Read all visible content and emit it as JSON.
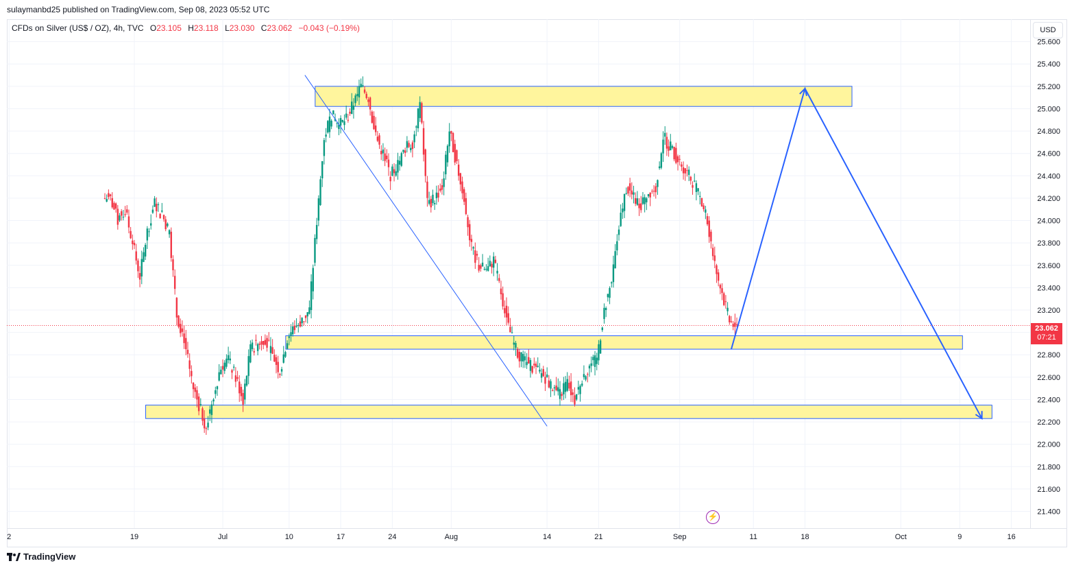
{
  "header": {
    "published_line": "sulaymanbd25 published on TradingView.com, Sep 08, 2023 05:52 UTC"
  },
  "legend": {
    "symbol": "CFDs on Silver (US$ / OZ), 4h, TVC",
    "open_label": "O",
    "open": "23.105",
    "high_label": "H",
    "high": "23.118",
    "low_label": "L",
    "low": "23.030",
    "close_label": "C",
    "close": "23.062",
    "change": "−0.043 (−0.19%)"
  },
  "currency_button": "USD",
  "last_price": {
    "value": "23.062",
    "countdown": "07:21"
  },
  "brand": {
    "name": "TradingView"
  },
  "colors": {
    "up": "#089981",
    "down": "#f23645",
    "zone_fill": "#fff59d",
    "zone_stroke": "#2962ff",
    "drawing": "#2962ff",
    "last_line": "#f23645",
    "alert_icon": "#9c27b0"
  },
  "icons": {
    "alert": "lightning-icon",
    "brand_logo": "tradingview-logo-icon"
  },
  "chart_data": {
    "type": "candlestick",
    "timeframe": "4h",
    "ylim": [
      21.25,
      25.8
    ],
    "y_ticks": [
      "25.600",
      "25.400",
      "25.200",
      "25.000",
      "24.800",
      "24.600",
      "24.400",
      "24.200",
      "24.000",
      "23.800",
      "23.600",
      "23.400",
      "23.200",
      "23.000",
      "22.800",
      "22.600",
      "22.400",
      "22.200",
      "22.000",
      "21.800",
      "21.600",
      "21.400"
    ],
    "x_ticks": [
      "2",
      "19",
      "Jul",
      "10",
      "17",
      "24",
      "Aug",
      "14",
      "21",
      "Sep",
      "11",
      "18",
      "Oct",
      "9",
      "16"
    ],
    "series_close_path": [
      [
        "Jun 15",
        24.2
      ],
      [
        "Jun 16",
        24.0
      ],
      [
        "Jun 17",
        24.1
      ],
      [
        "Jun 18",
        23.8
      ],
      [
        "Jun 19",
        23.5
      ],
      [
        "Jun 20",
        23.9
      ],
      [
        "Jun 21",
        24.15
      ],
      [
        "Jun 22",
        24.05
      ],
      [
        "Jun 23",
        23.9
      ],
      [
        "Jun 24",
        23.15
      ],
      [
        "Jun 25",
        22.95
      ],
      [
        "Jun 26",
        22.55
      ],
      [
        "Jun 27",
        22.35
      ],
      [
        "Jun 28",
        22.15
      ],
      [
        "Jun 29",
        22.45
      ],
      [
        "Jun 30",
        22.7
      ],
      [
        "Jul 1",
        22.75
      ],
      [
        "Jul 2",
        22.6
      ],
      [
        "Jul 3",
        22.4
      ],
      [
        "Jul 4",
        22.85
      ],
      [
        "Jul 5",
        22.9
      ],
      [
        "Jul 6",
        22.95
      ],
      [
        "Jul 7",
        22.8
      ],
      [
        "Jul 8",
        22.65
      ],
      [
        "Jul 9",
        22.95
      ],
      [
        "Jul 10",
        23.05
      ],
      [
        "Jul 11",
        23.1
      ],
      [
        "Jul 12",
        23.2
      ],
      [
        "Jul 13",
        24.0
      ],
      [
        "Jul 14",
        24.75
      ],
      [
        "Jul 15",
        24.95
      ],
      [
        "Jul 16",
        24.85
      ],
      [
        "Jul 17",
        24.9
      ],
      [
        "Jul 18",
        25.05
      ],
      [
        "Jul 19",
        25.2
      ],
      [
        "Jul 20",
        25.1
      ],
      [
        "Jul 21",
        24.75
      ],
      [
        "Jul 22",
        24.6
      ],
      [
        "Jul 23",
        24.4
      ],
      [
        "Jul 24",
        24.5
      ],
      [
        "Jul 25",
        24.65
      ],
      [
        "Jul 26",
        24.7
      ],
      [
        "Jul 27",
        25.05
      ],
      [
        "Jul 28",
        24.15
      ],
      [
        "Jul 29",
        24.2
      ],
      [
        "Jul 30",
        24.3
      ],
      [
        "Jul 31",
        24.8
      ],
      [
        "Aug 1",
        24.5
      ],
      [
        "Aug 2",
        24.2
      ],
      [
        "Aug 3",
        23.75
      ],
      [
        "Aug 4",
        23.6
      ],
      [
        "Aug 5",
        23.55
      ],
      [
        "Aug 6",
        23.65
      ],
      [
        "Aug 7",
        23.35
      ],
      [
        "Aug 8",
        23.05
      ],
      [
        "Aug 9",
        22.85
      ],
      [
        "Aug 10",
        22.75
      ],
      [
        "Aug 11",
        22.7
      ],
      [
        "Aug 12",
        22.65
      ],
      [
        "Aug 13",
        22.6
      ],
      [
        "Aug 14",
        22.5
      ],
      [
        "Aug 15",
        22.45
      ],
      [
        "Aug 16",
        22.55
      ],
      [
        "Aug 17",
        22.4
      ],
      [
        "Aug 18",
        22.6
      ],
      [
        "Aug 19",
        22.7
      ],
      [
        "Aug 20",
        22.75
      ],
      [
        "Aug 21",
        23.2
      ],
      [
        "Aug 22",
        23.45
      ],
      [
        "Aug 23",
        23.95
      ],
      [
        "Aug 24",
        24.3
      ],
      [
        "Aug 25",
        24.2
      ],
      [
        "Aug 26",
        24.15
      ],
      [
        "Aug 27",
        24.25
      ],
      [
        "Aug 28",
        24.3
      ],
      [
        "Aug 29",
        24.75
      ],
      [
        "Aug 30",
        24.65
      ],
      [
        "Aug 31",
        24.55
      ],
      [
        "Sep 1",
        24.45
      ],
      [
        "Sep 2",
        24.35
      ],
      [
        "Sep 3",
        24.2
      ],
      [
        "Sep 4",
        24.0
      ],
      [
        "Sep 5",
        23.6
      ],
      [
        "Sep 6",
        23.35
      ],
      [
        "Sep 7",
        23.1
      ],
      [
        "Sep 8",
        23.06
      ]
    ],
    "last_price": 23.062,
    "zones": [
      {
        "name": "resistance",
        "from": 25.02,
        "to": 25.2
      },
      {
        "name": "support",
        "from": 22.85,
        "to": 22.97
      },
      {
        "name": "lower-support",
        "from": 22.23,
        "to": 22.35
      }
    ],
    "projection": [
      [
        "Sep 8",
        22.85
      ],
      [
        "Sep 18",
        25.18
      ],
      [
        "Oct 12",
        22.23
      ]
    ],
    "trendline": [
      [
        "Jul 14",
        25.3
      ],
      [
        "Aug 14",
        22.1
      ]
    ],
    "grid": true
  }
}
